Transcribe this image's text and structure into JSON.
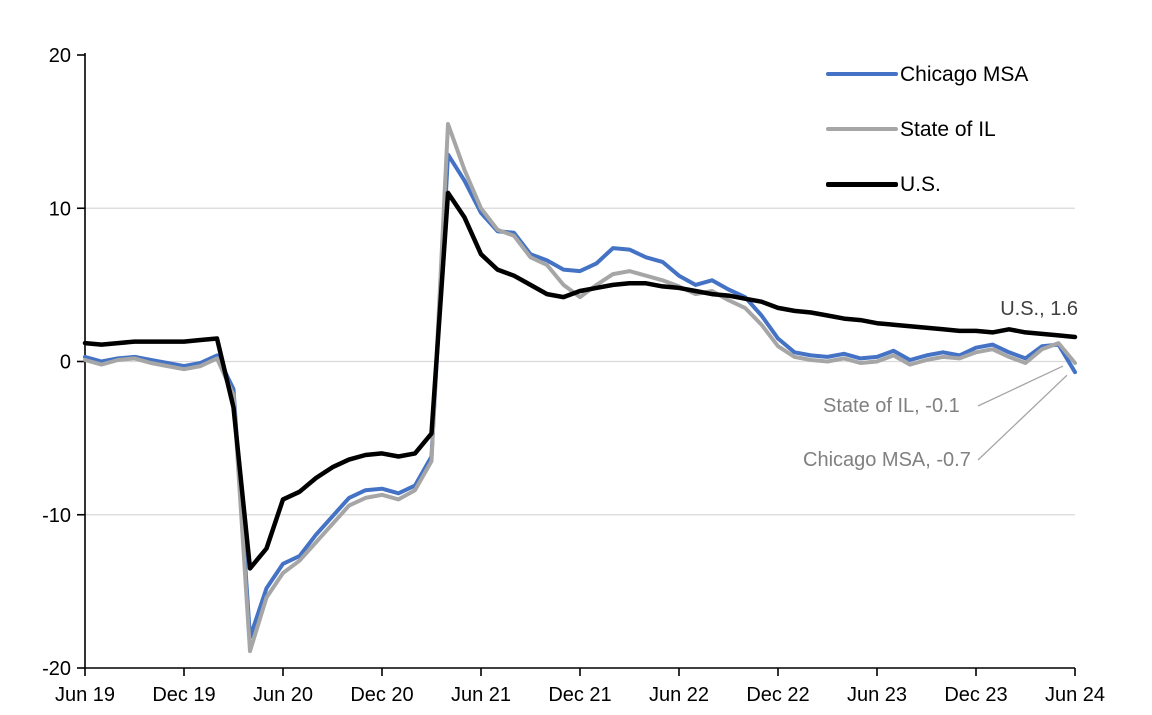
{
  "chart_data": {
    "type": "line",
    "title": "",
    "xlabel": "",
    "ylabel": "",
    "frequency": "monthly",
    "x_start": "Jun 19",
    "x_end": "Jun 24",
    "ylim": [
      -20,
      20
    ],
    "yticks": [
      20,
      10,
      0,
      -10,
      -20
    ],
    "gridlines": [
      10,
      0,
      -10
    ],
    "grid": "horizontal-only",
    "legend_position": "top-right-inside",
    "x_tick_labels": [
      "Jun 19",
      "Dec 19",
      "Jun 20",
      "Dec 20",
      "Jun 21",
      "Dec 21",
      "Jun 22",
      "Dec 22",
      "Jun 23",
      "Dec 23",
      "Jun 24"
    ],
    "x_tick_indices": [
      0,
      6,
      12,
      18,
      24,
      30,
      36,
      42,
      48,
      54,
      60
    ],
    "colors": {
      "gridline": "#D9D9D9",
      "axis": "#000000",
      "text": "#000000",
      "leader": "#A6A6A6"
    },
    "series": [
      {
        "name": "Chicago MSA",
        "color": "#4472C4",
        "width": 4,
        "values": [
          0.3,
          0.0,
          0.2,
          0.3,
          0.1,
          -0.1,
          -0.3,
          -0.1,
          0.4,
          -1.8,
          -18.0,
          -14.8,
          -13.2,
          -12.7,
          -11.3,
          -10.1,
          -8.9,
          -8.4,
          -8.3,
          -8.6,
          -8.1,
          -6.2,
          13.5,
          11.8,
          9.7,
          8.5,
          8.4,
          7.0,
          6.6,
          6.0,
          5.9,
          6.4,
          7.4,
          7.3,
          6.8,
          6.5,
          5.6,
          5.0,
          5.3,
          4.7,
          4.2,
          3.0,
          1.5,
          0.6,
          0.4,
          0.3,
          0.5,
          0.2,
          0.3,
          0.7,
          0.1,
          0.4,
          0.6,
          0.4,
          0.9,
          1.1,
          0.6,
          0.2,
          1.0,
          1.1,
          -0.7
        ]
      },
      {
        "name": "State of IL",
        "color": "#A6A6A6",
        "width": 4,
        "values": [
          0.1,
          -0.2,
          0.1,
          0.2,
          -0.1,
          -0.3,
          -0.5,
          -0.3,
          0.2,
          -2.2,
          -18.9,
          -15.4,
          -13.8,
          -13.0,
          -11.8,
          -10.6,
          -9.4,
          -8.9,
          -8.7,
          -9.0,
          -8.4,
          -6.5,
          15.5,
          12.5,
          10.0,
          8.6,
          8.2,
          6.8,
          6.3,
          5.0,
          4.2,
          5.0,
          5.7,
          5.9,
          5.6,
          5.3,
          4.9,
          4.4,
          4.6,
          4.0,
          3.5,
          2.4,
          1.0,
          0.3,
          0.1,
          0.0,
          0.2,
          -0.1,
          0.0,
          0.4,
          -0.2,
          0.1,
          0.3,
          0.2,
          0.6,
          0.8,
          0.3,
          -0.1,
          0.8,
          1.2,
          -0.1
        ]
      },
      {
        "name": "U.S.",
        "color": "#000000",
        "width": 4.5,
        "values": [
          1.2,
          1.1,
          1.2,
          1.3,
          1.3,
          1.3,
          1.3,
          1.4,
          1.5,
          -3.0,
          -13.5,
          -12.2,
          -9.0,
          -8.5,
          -7.6,
          -6.9,
          -6.4,
          -6.1,
          -6.0,
          -6.2,
          -6.0,
          -4.7,
          11.0,
          9.4,
          7.0,
          6.0,
          5.6,
          5.0,
          4.4,
          4.2,
          4.6,
          4.8,
          5.0,
          5.1,
          5.1,
          4.9,
          4.8,
          4.6,
          4.4,
          4.3,
          4.1,
          3.9,
          3.5,
          3.3,
          3.2,
          3.0,
          2.8,
          2.7,
          2.5,
          2.4,
          2.3,
          2.2,
          2.1,
          2.0,
          2.0,
          1.9,
          2.1,
          1.9,
          1.8,
          1.7,
          1.6
        ]
      }
    ],
    "annotations": [
      {
        "text": "U.S., 1.6",
        "series": "U.S.",
        "value": 1.6,
        "color": "#404040"
      },
      {
        "text": "State of IL, -0.1",
        "series": "State of IL",
        "value": -0.1,
        "color": "#808080"
      },
      {
        "text": "Chicago MSA, -0.7",
        "series": "Chicago MSA",
        "value": -0.7,
        "color": "#808080"
      }
    ]
  }
}
